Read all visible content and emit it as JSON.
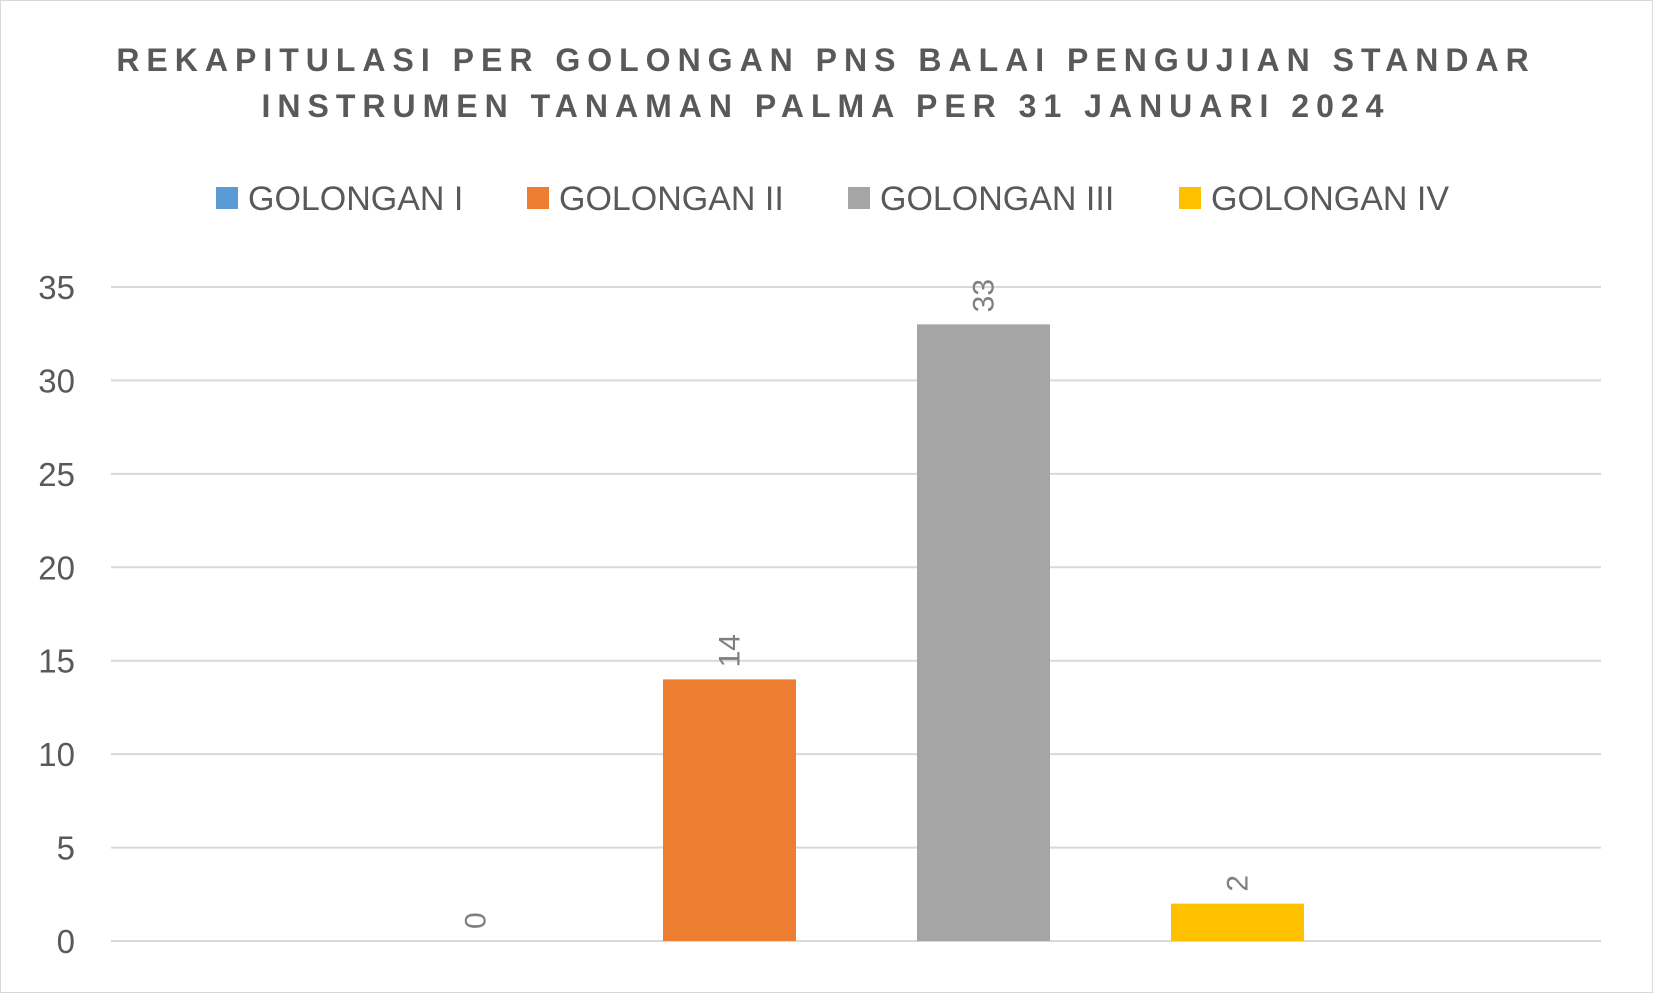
{
  "chart_data": {
    "type": "bar",
    "title_lines": [
      "REKAPITULASI PER GOLONGAN PNS BALAI PENGUJIAN STANDAR",
      "INSTRUMEN TANAMAN PALMA PER 31 JANUARI 2024"
    ],
    "series": [
      {
        "name": "GOLONGAN I",
        "value": 0,
        "color": "#5b9bd5"
      },
      {
        "name": "GOLONGAN II",
        "value": 14,
        "color": "#ed7d31"
      },
      {
        "name": "GOLONGAN III",
        "value": 33,
        "color": "#a5a5a5"
      },
      {
        "name": "GOLONGAN IV",
        "value": 2,
        "color": "#ffc000"
      }
    ],
    "ylim": [
      0,
      35
    ],
    "y_ticks": [
      "0",
      "5",
      "10",
      "15",
      "20",
      "25",
      "30",
      "35"
    ],
    "grid": true,
    "legend_position": "top",
    "data_labels": true,
    "data_label_orientation": "vertical"
  }
}
